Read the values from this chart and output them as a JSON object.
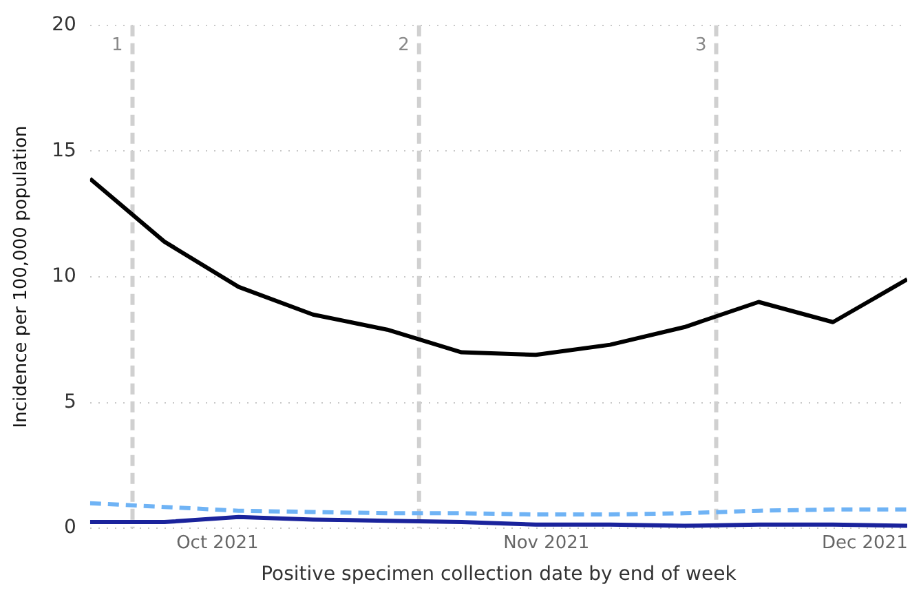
{
  "chart_data": {
    "type": "line",
    "xlabel": "Positive specimen collection date by end of week",
    "ylabel": "Incidence per 100,000 population",
    "x": [
      "2021-09-19",
      "2021-09-26",
      "2021-10-03",
      "2021-10-10",
      "2021-10-17",
      "2021-10-24",
      "2021-10-31",
      "2021-11-07",
      "2021-11-14",
      "2021-11-21",
      "2021-11-28",
      "2021-12-05"
    ],
    "series": [
      {
        "color": "#000000",
        "line_style": "solid",
        "values": [
          13.9,
          11.4,
          9.6,
          8.5,
          7.9,
          7.0,
          6.9,
          7.3,
          8.0,
          9.0,
          8.2,
          9.9
        ]
      },
      {
        "color": "#6fb3f5",
        "line_style": "dashed",
        "values": [
          1.0,
          0.85,
          0.7,
          0.65,
          0.6,
          0.6,
          0.55,
          0.55,
          0.6,
          0.7,
          0.75,
          0.75
        ]
      },
      {
        "color": "#1a239c",
        "line_style": "solid",
        "values": [
          0.25,
          0.25,
          0.45,
          0.35,
          0.3,
          0.25,
          0.15,
          0.15,
          0.1,
          0.15,
          0.15,
          0.1
        ]
      }
    ],
    "xlim": [
      "2021-09-19",
      "2021-12-05"
    ],
    "xticks": [
      {
        "value": "2021-10-01",
        "label": "Oct 2021"
      },
      {
        "value": "2021-11-01",
        "label": "Nov 2021"
      },
      {
        "value": "2021-12-01",
        "label": "Dec 2021"
      }
    ],
    "ylim": [
      0,
      20
    ],
    "yticks": [
      0,
      5,
      10,
      15,
      20
    ],
    "ref_lines": [
      {
        "axis": "x",
        "value": "2021-09-23",
        "label": "1",
        "color": "#d0d0d0",
        "line_style": "dashed"
      },
      {
        "axis": "x",
        "value": "2021-10-20",
        "label": "2",
        "color": "#d0d0d0",
        "line_style": "dashed"
      },
      {
        "axis": "x",
        "value": "2021-11-17",
        "label": "3",
        "color": "#d0d0d0",
        "line_style": "dashed"
      }
    ],
    "grid": "y",
    "legend": false,
    "marker": "none"
  }
}
